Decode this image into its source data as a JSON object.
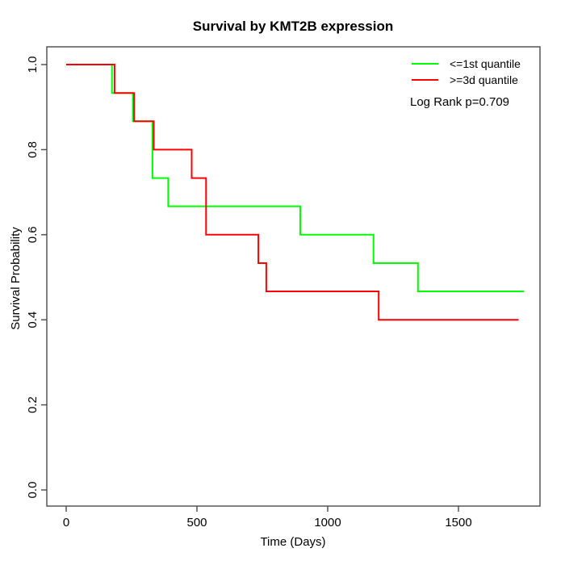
{
  "title": "Survival by KMT2B expression",
  "chart_data": {
    "type": "line",
    "subtype": "kaplan-meier-step",
    "title": "Survival by KMT2B expression",
    "xlabel": "Time (Days)",
    "ylabel": "Survival Probability",
    "xlim": [
      0,
      1810
    ],
    "ylim": [
      0.0,
      1.0
    ],
    "x_ticks": [
      0,
      500,
      1000,
      1500
    ],
    "y_ticks": [
      0.0,
      0.2,
      0.4,
      0.6,
      0.8,
      1.0
    ],
    "grid": false,
    "legend_position": "top-right",
    "annotation": "Log Rank p=0.709",
    "series": [
      {
        "name": "<=1st quantile",
        "color_id": "green",
        "color": "#00ff00",
        "points": [
          [
            0,
            1.0
          ],
          [
            175,
            1.0
          ],
          [
            175,
            0.9333
          ],
          [
            255,
            0.9333
          ],
          [
            255,
            0.8667
          ],
          [
            330,
            0.8667
          ],
          [
            330,
            0.7333
          ],
          [
            390,
            0.7333
          ],
          [
            390,
            0.6667
          ],
          [
            895,
            0.6667
          ],
          [
            895,
            0.6
          ],
          [
            1175,
            0.6
          ],
          [
            1175,
            0.5333
          ],
          [
            1345,
            0.5333
          ],
          [
            1345,
            0.4667
          ],
          [
            1750,
            0.4667
          ]
        ]
      },
      {
        "name": ">=3d quantile",
        "color_id": "red",
        "color": "#ff0000",
        "points": [
          [
            0,
            1.0
          ],
          [
            185,
            1.0
          ],
          [
            185,
            0.9333
          ],
          [
            260,
            0.9333
          ],
          [
            260,
            0.8667
          ],
          [
            335,
            0.8667
          ],
          [
            335,
            0.8
          ],
          [
            480,
            0.8
          ],
          [
            480,
            0.7333
          ],
          [
            535,
            0.7333
          ],
          [
            535,
            0.6
          ],
          [
            735,
            0.6
          ],
          [
            735,
            0.5333
          ],
          [
            765,
            0.5333
          ],
          [
            765,
            0.4667
          ],
          [
            1195,
            0.4667
          ],
          [
            1195,
            0.4
          ],
          [
            1730,
            0.4
          ]
        ]
      }
    ]
  }
}
